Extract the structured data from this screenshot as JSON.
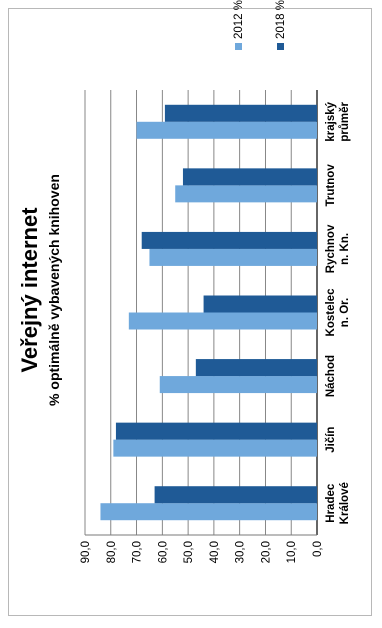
{
  "chart_data": {
    "type": "bar",
    "orientation": "horizontal",
    "title": "Veřejný internet",
    "subtitle": "% optimálně vybavených knihoven",
    "categories": [
      [
        "Hradec",
        "Králové"
      ],
      [
        "Jičín"
      ],
      [
        "Náchod"
      ],
      [
        "Kostelec",
        "n. Or."
      ],
      [
        "Rychnov",
        "n. Kn."
      ],
      [
        "Trutnov"
      ],
      [
        "krajský",
        "průměr"
      ]
    ],
    "series": [
      {
        "name": "2012 %",
        "color": "#6fa8dc",
        "values": [
          84,
          79,
          61,
          73,
          65,
          55,
          70
        ]
      },
      {
        "name": "2018 %",
        "color": "#1f5a96",
        "values": [
          63,
          78,
          47,
          44,
          68,
          52,
          59
        ]
      }
    ],
    "ylim": [
      0,
      90
    ],
    "ticks": [
      "0,0",
      "10,0",
      "20,0",
      "30,0",
      "40,0",
      "50,0",
      "60,0",
      "70,0",
      "80,0",
      "90,0"
    ],
    "grid": true,
    "legend_position": "top-right"
  }
}
